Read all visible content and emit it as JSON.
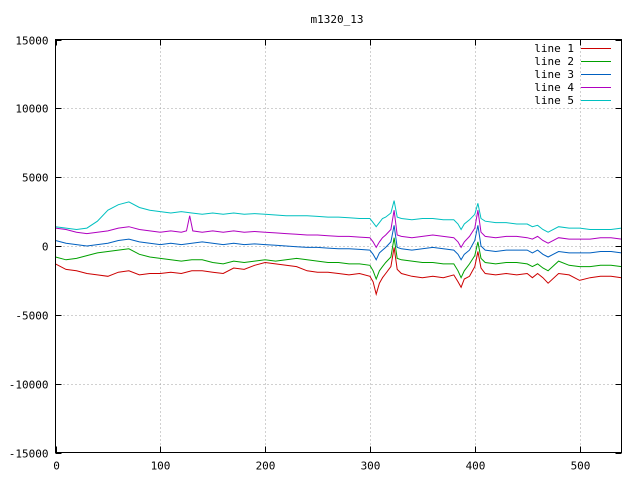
{
  "chart_data": {
    "type": "line",
    "title": "m1320_13",
    "xlabel": "",
    "ylabel": "",
    "xlim": [
      0,
      540
    ],
    "ylim": [
      -15000,
      15000
    ],
    "xticks": [
      0,
      100,
      200,
      300,
      400,
      500
    ],
    "yticks": [
      -15000,
      -10000,
      -5000,
      0,
      5000,
      10000,
      15000
    ],
    "grid": true,
    "legend_position": "top-right",
    "series": [
      {
        "name": "line 1",
        "color": "#cc0000",
        "x": [
          0,
          10,
          20,
          30,
          40,
          50,
          60,
          70,
          80,
          90,
          100,
          110,
          120,
          130,
          140,
          150,
          160,
          170,
          180,
          190,
          200,
          210,
          220,
          230,
          240,
          250,
          260,
          270,
          280,
          290,
          300,
          303,
          306,
          309,
          312,
          315,
          320,
          323,
          326,
          330,
          340,
          350,
          360,
          370,
          380,
          384,
          387,
          390,
          395,
          400,
          403,
          406,
          410,
          420,
          430,
          440,
          450,
          455,
          460,
          465,
          470,
          480,
          490,
          500,
          510,
          520,
          530,
          540
        ],
        "y": [
          -1300,
          -1700,
          -1800,
          -2000,
          -2100,
          -2200,
          -1900,
          -1800,
          -2100,
          -2000,
          -2000,
          -1900,
          -2000,
          -1800,
          -1800,
          -1900,
          -2000,
          -1600,
          -1700,
          -1400,
          -1200,
          -1300,
          -1400,
          -1500,
          -1800,
          -1900,
          -1900,
          -2000,
          -2100,
          -2000,
          -2200,
          -2600,
          -3500,
          -2700,
          -2300,
          -2000,
          -1500,
          -100,
          -1700,
          -2000,
          -2200,
          -2300,
          -2200,
          -2300,
          -2100,
          -2600,
          -3000,
          -2400,
          -2200,
          -1500,
          -400,
          -1600,
          -2000,
          -2100,
          -2000,
          -2100,
          -2000,
          -2300,
          -2000,
          -2300,
          -2700,
          -2000,
          -2100,
          -2500,
          -2300,
          -2200,
          -2200,
          -2300
        ]
      },
      {
        "name": "line 2",
        "color": "#00a000",
        "x": [
          0,
          10,
          20,
          30,
          40,
          50,
          60,
          70,
          80,
          90,
          100,
          110,
          120,
          130,
          140,
          150,
          160,
          170,
          180,
          190,
          200,
          210,
          220,
          230,
          240,
          250,
          260,
          270,
          280,
          290,
          300,
          303,
          306,
          309,
          312,
          315,
          320,
          323,
          326,
          330,
          340,
          350,
          360,
          370,
          380,
          384,
          387,
          390,
          395,
          400,
          403,
          406,
          410,
          420,
          430,
          440,
          450,
          455,
          460,
          465,
          470,
          480,
          490,
          500,
          510,
          520,
          530,
          540
        ],
        "y": [
          -800,
          -1000,
          -900,
          -700,
          -500,
          -400,
          -300,
          -200,
          -600,
          -800,
          -900,
          -1000,
          -1100,
          -1000,
          -1000,
          -1200,
          -1300,
          -1100,
          -1200,
          -1100,
          -1000,
          -1100,
          -1000,
          -900,
          -1000,
          -1100,
          -1200,
          -1200,
          -1300,
          -1300,
          -1400,
          -1800,
          -2400,
          -1800,
          -1500,
          -1200,
          -800,
          600,
          -900,
          -1000,
          -1100,
          -1200,
          -1200,
          -1300,
          -1300,
          -1800,
          -2300,
          -1800,
          -1300,
          -700,
          300,
          -900,
          -1200,
          -1300,
          -1200,
          -1200,
          -1300,
          -1500,
          -1300,
          -1600,
          -1800,
          -1100,
          -1400,
          -1500,
          -1500,
          -1400,
          -1400,
          -1500
        ]
      },
      {
        "name": "line 3",
        "color": "#0060c0",
        "x": [
          0,
          10,
          20,
          30,
          40,
          50,
          60,
          70,
          80,
          90,
          100,
          110,
          120,
          130,
          140,
          150,
          160,
          170,
          180,
          190,
          200,
          210,
          220,
          230,
          240,
          250,
          260,
          270,
          280,
          290,
          300,
          303,
          306,
          309,
          312,
          315,
          320,
          323,
          326,
          330,
          340,
          350,
          360,
          370,
          380,
          384,
          387,
          390,
          395,
          400,
          403,
          406,
          410,
          420,
          430,
          440,
          450,
          455,
          460,
          465,
          470,
          480,
          490,
          500,
          510,
          520,
          530,
          540
        ],
        "y": [
          400,
          200,
          100,
          0,
          100,
          200,
          400,
          500,
          300,
          200,
          100,
          200,
          100,
          200,
          300,
          200,
          100,
          200,
          100,
          150,
          100,
          50,
          0,
          -50,
          -100,
          -100,
          -150,
          -200,
          -200,
          -250,
          -300,
          -600,
          -1000,
          -500,
          -300,
          -100,
          300,
          1500,
          -100,
          -200,
          -300,
          -200,
          -100,
          -200,
          -300,
          -600,
          -1000,
          -600,
          -300,
          400,
          1500,
          0,
          -300,
          -400,
          -300,
          -300,
          -300,
          -500,
          -300,
          -600,
          -800,
          -400,
          -500,
          -500,
          -500,
          -400,
          -400,
          -500
        ]
      },
      {
        "name": "line 4",
        "color": "#b000c0",
        "x": [
          0,
          10,
          20,
          30,
          40,
          50,
          60,
          70,
          80,
          90,
          100,
          110,
          120,
          125,
          128,
          131,
          140,
          150,
          160,
          170,
          180,
          190,
          200,
          210,
          220,
          230,
          240,
          250,
          260,
          270,
          280,
          290,
          300,
          303,
          306,
          309,
          312,
          315,
          320,
          323,
          326,
          330,
          340,
          350,
          360,
          370,
          380,
          384,
          387,
          390,
          395,
          400,
          403,
          406,
          410,
          420,
          430,
          440,
          450,
          455,
          460,
          465,
          470,
          480,
          490,
          500,
          510,
          520,
          530,
          540
        ],
        "y": [
          1300,
          1200,
          1000,
          900,
          1000,
          1100,
          1300,
          1400,
          1200,
          1100,
          1000,
          1100,
          1000,
          1100,
          2200,
          1100,
          1000,
          1100,
          1000,
          1100,
          1000,
          1050,
          1000,
          950,
          900,
          850,
          800,
          800,
          750,
          700,
          700,
          650,
          600,
          300,
          -100,
          300,
          600,
          800,
          1200,
          2600,
          800,
          700,
          600,
          700,
          800,
          700,
          600,
          300,
          -100,
          300,
          700,
          1300,
          2600,
          1000,
          700,
          600,
          700,
          700,
          600,
          500,
          700,
          400,
          200,
          600,
          500,
          500,
          500,
          600,
          600,
          500
        ]
      },
      {
        "name": "line 5",
        "color": "#00c0c0",
        "x": [
          0,
          10,
          20,
          30,
          40,
          50,
          60,
          70,
          80,
          90,
          100,
          110,
          120,
          130,
          140,
          150,
          160,
          170,
          180,
          190,
          200,
          210,
          220,
          230,
          240,
          250,
          260,
          270,
          280,
          290,
          300,
          303,
          306,
          309,
          312,
          315,
          320,
          323,
          326,
          330,
          340,
          350,
          360,
          370,
          380,
          384,
          387,
          390,
          395,
          400,
          403,
          406,
          410,
          420,
          430,
          440,
          450,
          455,
          460,
          465,
          470,
          480,
          490,
          500,
          510,
          520,
          530,
          540
        ],
        "y": [
          1400,
          1300,
          1200,
          1300,
          1800,
          2600,
          3000,
          3200,
          2800,
          2600,
          2500,
          2400,
          2500,
          2400,
          2300,
          2400,
          2300,
          2400,
          2300,
          2350,
          2300,
          2250,
          2200,
          2200,
          2200,
          2150,
          2100,
          2100,
          2050,
          2000,
          2000,
          1700,
          1400,
          1700,
          2000,
          2100,
          2400,
          3300,
          2100,
          2000,
          1900,
          2000,
          2000,
          1900,
          1900,
          1600,
          1200,
          1600,
          1900,
          2300,
          3100,
          2000,
          1800,
          1700,
          1700,
          1600,
          1600,
          1400,
          1500,
          1200,
          1000,
          1400,
          1300,
          1300,
          1200,
          1200,
          1200,
          1300
        ]
      }
    ]
  }
}
